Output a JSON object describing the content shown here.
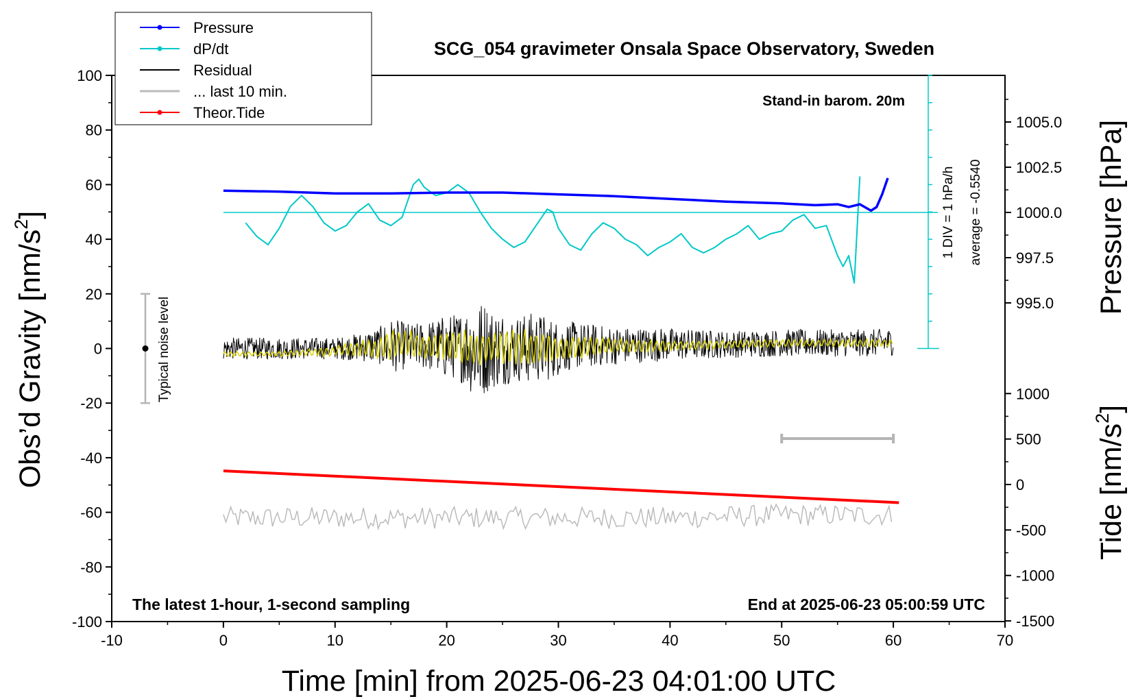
{
  "chart_data": {
    "type": "line",
    "title": "SCG_054 gravimeter Onsala Space Observatory, Sweden",
    "xlabel": "Time [min] from 2025-06-23 04:01:00 UTC",
    "ylabel_main": "Obs’d Gravity [nm/s",
    "ylabel_main_sup": "2",
    "ylabel_main_end": "]",
    "ylabel_pressure": "Pressure [hPa]",
    "ylabel_tide": "Tide [nm/s",
    "ylabel_tide_sup": "2",
    "ylabel_tide_end": "]",
    "xlim": [
      -10,
      70
    ],
    "ylim": [
      -100,
      100
    ],
    "xticks": [
      "-10",
      "0",
      "10",
      "20",
      "30",
      "40",
      "50",
      "60",
      "70"
    ],
    "yticks": [
      "100",
      "80",
      "60",
      "40",
      "20",
      "0",
      "-20",
      "-40",
      "-60",
      "-80",
      "-100"
    ],
    "pressure_axis": {
      "ticks": [
        "1005.0",
        "1002.5",
        "1000.0",
        "997.5",
        "995.0"
      ],
      "tick_values": [
        1005.0,
        1002.5,
        1000.0,
        997.5,
        995.0
      ]
    },
    "tide_axis": {
      "ticks": [
        "1000",
        "500",
        "0",
        "-500",
        "-1000",
        "-1500"
      ],
      "tick_values": [
        1000,
        500,
        0,
        -500,
        -1000,
        -1500
      ]
    },
    "dpdt_scale": {
      "label1": "1 DIV = 1 hPa/h",
      "label2": "average = -0.5540",
      "divisions": 10
    },
    "annotations": {
      "station": "Stand-in barom. 20m",
      "bottom_left": "The latest 1-hour, 1-second sampling",
      "bottom_right": "End at 2025-06-23 05:00:59 UTC",
      "noise": "Typical noise level",
      "noise_range": [
        -20,
        20
      ]
    },
    "legend": {
      "position": "top-left",
      "entries": [
        {
          "label": "Pressure",
          "color": "#0000ff",
          "marker": true
        },
        {
          "label": "dP/dt",
          "color": "#00c8c8",
          "marker": true
        },
        {
          "label": "Residual",
          "color": "#000000",
          "marker": false
        },
        {
          "label": "... last 10 min.",
          "color": "#bbbbbb",
          "marker": false
        },
        {
          "label": "Theor.Tide",
          "color": "#ff0000",
          "marker": true
        }
      ]
    },
    "last10_bar": {
      "x": [
        50,
        60
      ],
      "y": -33
    },
    "series": [
      {
        "name": "Pressure",
        "color": "#0000ff",
        "axis": "pressure",
        "x": [
          0,
          5,
          10,
          15,
          20,
          25,
          30,
          35,
          40,
          45,
          50,
          53,
          55,
          56,
          57,
          58,
          58.5,
          59,
          59.5
        ],
        "y": [
          1001.2,
          1001.15,
          1001.05,
          1001.05,
          1001.1,
          1001.1,
          1001.0,
          1000.9,
          1000.75,
          1000.6,
          1000.5,
          1000.4,
          1000.45,
          1000.3,
          1000.45,
          1000.1,
          1000.3,
          1001.0,
          1001.9
        ]
      },
      {
        "name": "dP/dt",
        "color": "#00c8c8",
        "axis": "gravity",
        "x": [
          2,
          3,
          4,
          5,
          6,
          7,
          8,
          9,
          10,
          11,
          12,
          13,
          14,
          15,
          16,
          17,
          17.5,
          18,
          19,
          20,
          21,
          22,
          23,
          24,
          25,
          26,
          27,
          28,
          29,
          29.5,
          30,
          31,
          32,
          33,
          34,
          35,
          36,
          37,
          38,
          39,
          40,
          41,
          42,
          43,
          44,
          45,
          46,
          47,
          48,
          49,
          50,
          51,
          52,
          53,
          54,
          55,
          55.5,
          56,
          56.5,
          57
        ],
        "y": [
          46,
          41,
          38,
          44,
          52,
          56,
          52,
          46,
          43,
          45,
          50,
          53,
          47,
          45,
          48,
          60,
          62,
          59,
          56,
          57,
          60,
          57,
          50,
          44,
          40,
          37,
          39,
          45,
          51,
          50,
          44,
          38,
          36,
          42,
          46,
          44,
          40,
          38,
          34,
          37,
          39,
          42,
          37,
          35,
          37,
          40,
          42,
          45,
          40,
          42,
          43,
          47,
          49,
          44,
          45,
          34,
          30,
          34,
          24,
          63
        ]
      },
      {
        "name": "Residual",
        "color": "#000000",
        "axis": "gravity",
        "x": [
          0,
          5,
          10,
          12,
          14,
          15,
          16,
          17,
          18,
          19,
          20,
          21,
          22,
          22.5,
          23,
          23.5,
          24,
          25,
          26,
          27,
          28,
          29,
          30,
          31,
          33,
          35,
          40,
          45,
          50,
          55,
          58,
          60
        ],
        "y": [
          0,
          0,
          0,
          0.5,
          1,
          1,
          1,
          1,
          1,
          1,
          0.5,
          1,
          0,
          0,
          -1,
          0.5,
          0,
          0,
          0,
          0,
          0.5,
          0,
          0,
          1,
          1,
          1,
          1.5,
          1.5,
          2,
          2,
          2,
          2.5
        ],
        "noise_amplitude_nm_s2": [
          4,
          4,
          4,
          5,
          7,
          10,
          9,
          8,
          9,
          10,
          12,
          12,
          16,
          18,
          19,
          17,
          15,
          14,
          12,
          13,
          13,
          12,
          10,
          9,
          8,
          7,
          6,
          5,
          5,
          5,
          5,
          5
        ]
      },
      {
        "name": "Residual (filtered)",
        "color": "#d6d000",
        "axis": "gravity",
        "x": [
          0,
          5,
          10,
          12,
          14,
          15,
          16,
          18,
          20,
          22,
          23,
          24,
          26,
          28,
          30,
          35,
          40,
          45,
          50,
          55,
          60
        ],
        "y": [
          -2,
          -2,
          -1,
          0,
          0,
          1,
          2,
          1,
          1,
          0,
          0,
          0,
          1,
          0,
          0,
          1,
          1,
          1.5,
          2,
          2,
          2
        ],
        "amplitude_nm_s2": [
          1,
          1,
          2,
          3,
          4,
          6,
          6,
          5,
          6,
          7,
          7,
          6,
          7,
          7,
          5,
          3,
          2,
          1.5,
          1.5,
          1.5,
          1.5
        ]
      },
      {
        "name": "... last 10 min.",
        "color": "#bbbbbb",
        "axis": "gravity",
        "x": [
          0,
          10,
          20,
          30,
          40,
          50,
          60
        ],
        "y": [
          -62,
          -62,
          -62,
          -62,
          -62,
          -61,
          -61
        ],
        "amplitude_nm_s2": 4
      },
      {
        "name": "Theor.Tide",
        "color": "#ff0000",
        "axis": "tide",
        "x": [
          0,
          60.5
        ],
        "y": [
          150,
          -200
        ]
      }
    ]
  }
}
